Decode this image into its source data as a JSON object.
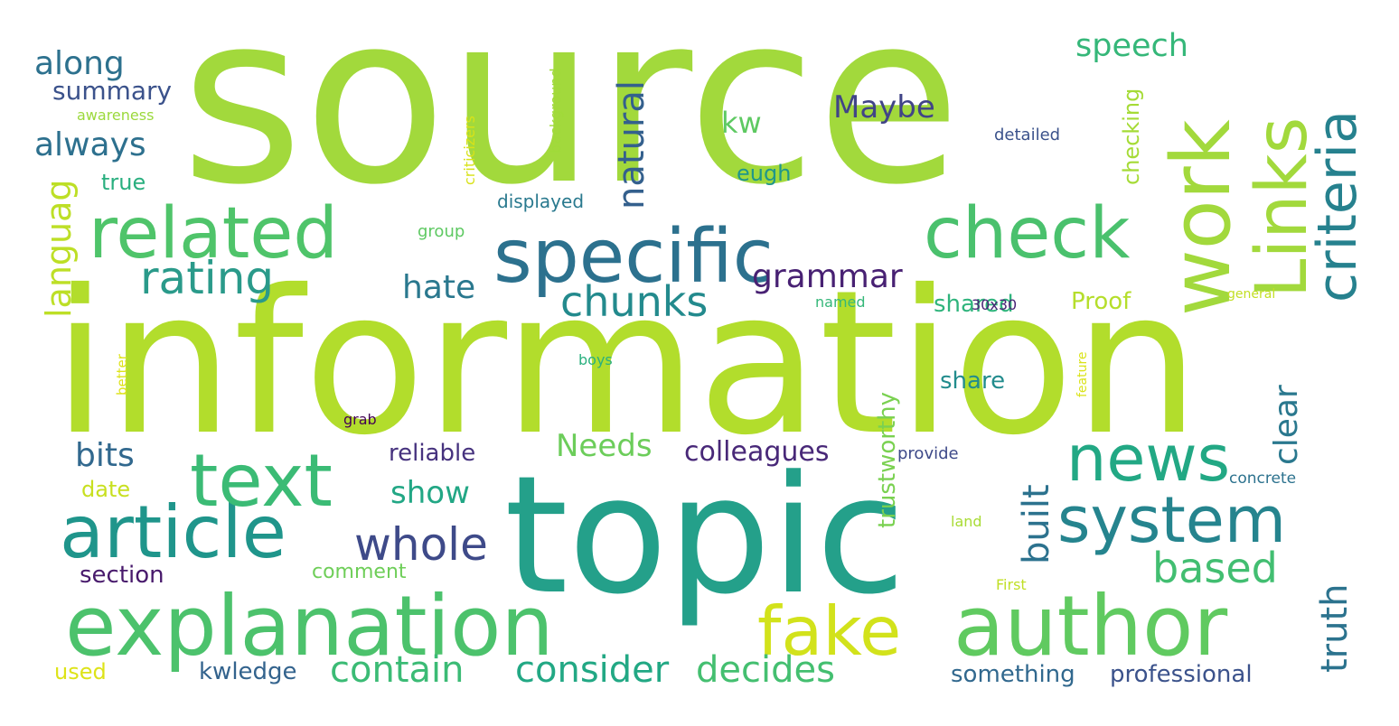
{
  "background_color": "#ffffff",
  "colormap": "viridis",
  "words": [
    {
      "text": "source",
      "color": "#a2d93c"
    },
    {
      "text": "information",
      "color": "#b2dd2c"
    },
    {
      "text": "topic",
      "color": "#24a08a"
    },
    {
      "text": "specific",
      "color": "#2c718e"
    },
    {
      "text": "related",
      "color": "#4fc46a"
    },
    {
      "text": "check",
      "color": "#4ac16d"
    },
    {
      "text": "work",
      "color": "#a2d93c"
    },
    {
      "text": "Links",
      "color": "#a2d93c"
    },
    {
      "text": "criteria",
      "color": "#26818e"
    },
    {
      "text": "explanation",
      "color": "#4cc26c"
    },
    {
      "text": "author",
      "color": "#60ca60"
    },
    {
      "text": "article",
      "color": "#1f958b"
    },
    {
      "text": "text",
      "color": "#3bbb75"
    },
    {
      "text": "news",
      "color": "#22a884"
    },
    {
      "text": "system",
      "color": "#25848e"
    },
    {
      "text": "fake",
      "color": "#d2e21b"
    },
    {
      "text": "rating",
      "color": "#2a9a8a"
    },
    {
      "text": "chunks",
      "color": "#238a8d"
    },
    {
      "text": "whole",
      "color": "#3e4a89"
    },
    {
      "text": "grammar",
      "color": "#482173"
    },
    {
      "text": "natural",
      "color": "#34608d"
    },
    {
      "text": "speech",
      "color": "#35b779"
    },
    {
      "text": "along",
      "color": "#2d718e"
    },
    {
      "text": "always",
      "color": "#2d708e"
    },
    {
      "text": "summary",
      "color": "#3b528b"
    },
    {
      "text": "languag",
      "color": "#bddf26"
    },
    {
      "text": "kw",
      "color": "#5ec962"
    },
    {
      "text": "Maybe",
      "color": "#414487"
    },
    {
      "text": "hate",
      "color": "#2a788e"
    },
    {
      "text": "bits",
      "color": "#31688e"
    },
    {
      "text": "based",
      "color": "#42be71"
    },
    {
      "text": "built",
      "color": "#2c728e"
    },
    {
      "text": "clear",
      "color": "#2a788e"
    },
    {
      "text": "truth",
      "color": "#2c738e"
    },
    {
      "text": "Needs",
      "color": "#6ccd5a"
    },
    {
      "text": "show",
      "color": "#22a785"
    },
    {
      "text": "consider",
      "color": "#22a884"
    },
    {
      "text": "decides",
      "color": "#44bf70"
    },
    {
      "text": "contain",
      "color": "#3bbb75"
    },
    {
      "text": "colleagues",
      "color": "#482878"
    },
    {
      "text": "reliable",
      "color": "#46327e"
    },
    {
      "text": "trustworthy",
      "color": "#7ad151"
    },
    {
      "text": "checking",
      "color": "#a5db36"
    },
    {
      "text": "shared",
      "color": "#2fb47c"
    },
    {
      "text": "share",
      "color": "#228c8d"
    },
    {
      "text": "Proof",
      "color": "#b5de2b"
    },
    {
      "text": "eugh",
      "color": "#1f968b"
    },
    {
      "text": "section",
      "color": "#481a6c"
    },
    {
      "text": "kwledge",
      "color": "#33638d"
    },
    {
      "text": "used",
      "color": "#dde318"
    },
    {
      "text": "something",
      "color": "#31688e"
    },
    {
      "text": "professional",
      "color": "#3b528b"
    },
    {
      "text": "comment",
      "color": "#6ece58"
    },
    {
      "text": "date",
      "color": "#c8e020"
    },
    {
      "text": "true",
      "color": "#29af7f"
    },
    {
      "text": "displayed",
      "color": "#29798e"
    },
    {
      "text": "group",
      "color": "#5ec962"
    },
    {
      "text": "background",
      "color": "#a0da39"
    },
    {
      "text": "criticizers",
      "color": "#d8e219"
    },
    {
      "text": "awareness",
      "color": "#9bd93c"
    },
    {
      "text": "detailed",
      "color": "#3b528b"
    },
    {
      "text": "named",
      "color": "#35b779"
    },
    {
      "text": "30x30",
      "color": "#482475"
    },
    {
      "text": "general",
      "color": "#c2df23"
    },
    {
      "text": "boys",
      "color": "#2ab07f"
    },
    {
      "text": "grab",
      "color": "#440154"
    },
    {
      "text": "better",
      "color": "#dde318"
    },
    {
      "text": "feature",
      "color": "#dae319"
    },
    {
      "text": "provide",
      "color": "#3e4a89"
    },
    {
      "text": "concrete",
      "color": "#2c728e"
    },
    {
      "text": "land",
      "color": "#a8db34"
    },
    {
      "text": "First",
      "color": "#c0df25"
    }
  ]
}
